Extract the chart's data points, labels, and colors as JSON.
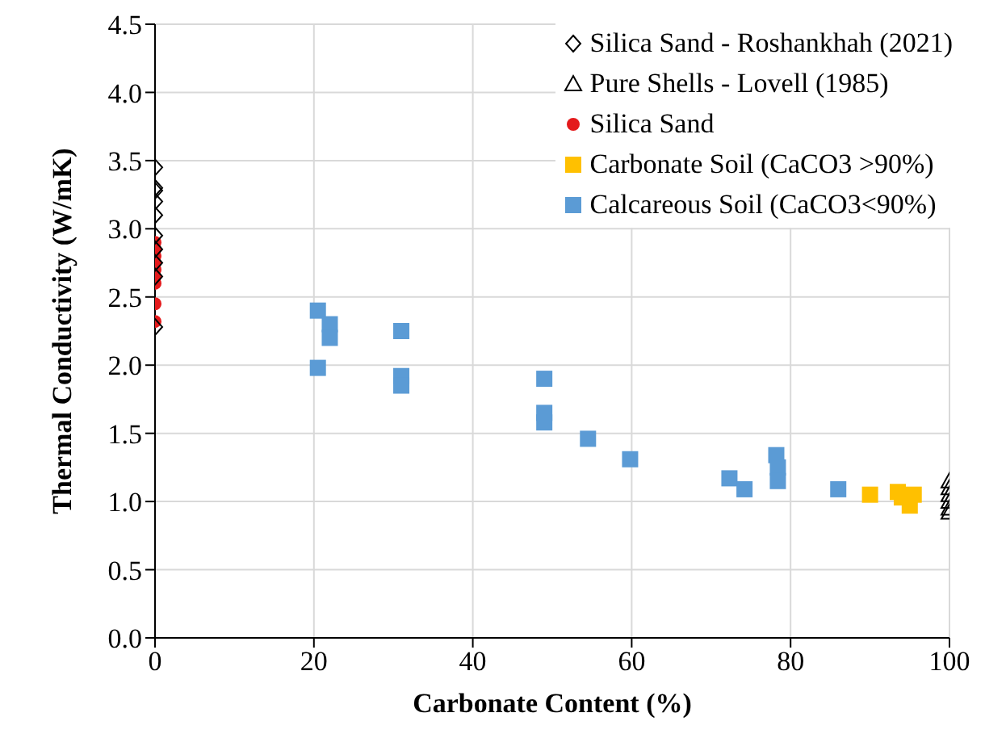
{
  "chart_data": {
    "type": "scatter",
    "xlabel": "Carbonate Content (%)",
    "ylabel": "Thermal Conductivity  (W/mK)",
    "xlim": [
      0,
      100
    ],
    "xticks": [
      0,
      20,
      40,
      60,
      80,
      100
    ],
    "ylim": [
      0,
      4.5
    ],
    "yticks": [
      {
        "value": 0,
        "label": "0.0"
      },
      {
        "value": 0.5,
        "label": "0.5"
      },
      {
        "value": 1,
        "label": "1.0"
      },
      {
        "value": 1.5,
        "label": "1.5"
      },
      {
        "value": 2,
        "label": "2.0"
      },
      {
        "value": 2.5,
        "label": "2.5"
      },
      {
        "value": 3,
        "label": "3.0"
      },
      {
        "value": 3.5,
        "label": "3.5"
      },
      {
        "value": 4,
        "label": "4.0"
      },
      {
        "value": 4.5,
        "label": "4.5"
      }
    ],
    "grid": true,
    "legend": "top right",
    "series": [
      {
        "name": "Silica Sand - Roshankhah (2021)",
        "color": "#000000",
        "marker": "diamond",
        "x": [
          0,
          0,
          0,
          0,
          0,
          0,
          0,
          0,
          0,
          0
        ],
        "values": [
          3.45,
          3.3,
          3.28,
          3.2,
          3.1,
          2.95,
          2.85,
          2.75,
          2.65,
          2.28
        ]
      },
      {
        "name": "Pure Shells - Lovell (1985)",
        "color": "#000000",
        "marker": "triangle",
        "x": [
          100,
          100,
          100,
          100,
          100,
          100
        ],
        "values": [
          1.15,
          1.1,
          1.05,
          1.0,
          0.95,
          0.92
        ]
      },
      {
        "name": "Silica Sand",
        "color": "#e41a1c",
        "marker": "circle",
        "x": [
          0,
          0,
          0,
          0,
          0,
          0,
          0,
          0,
          0
        ],
        "values": [
          2.9,
          2.85,
          2.8,
          2.75,
          2.7,
          2.65,
          2.6,
          2.45,
          2.32
        ]
      },
      {
        "name": "Carbonate Soil (CaCO3 >90%)",
        "color": "#ffc000",
        "marker": "square",
        "x": [
          90,
          93.5,
          94,
          95,
          95.5
        ],
        "values": [
          1.05,
          1.07,
          1.03,
          0.97,
          1.05
        ]
      },
      {
        "name": "Calcareous Soil (CaCO3<90%)",
        "color": "#5b9bd5",
        "marker": "square",
        "x": [
          20.5,
          22,
          22,
          20.5,
          31,
          31,
          31,
          49,
          49,
          49,
          54.5,
          59.8,
          72.3,
          74.2,
          78.2,
          78.4,
          78.4,
          86
        ],
        "values": [
          2.4,
          2.3,
          2.2,
          1.98,
          2.25,
          1.92,
          1.85,
          1.9,
          1.65,
          1.58,
          1.46,
          1.31,
          1.17,
          1.09,
          1.34,
          1.25,
          1.15,
          1.09
        ]
      }
    ]
  }
}
